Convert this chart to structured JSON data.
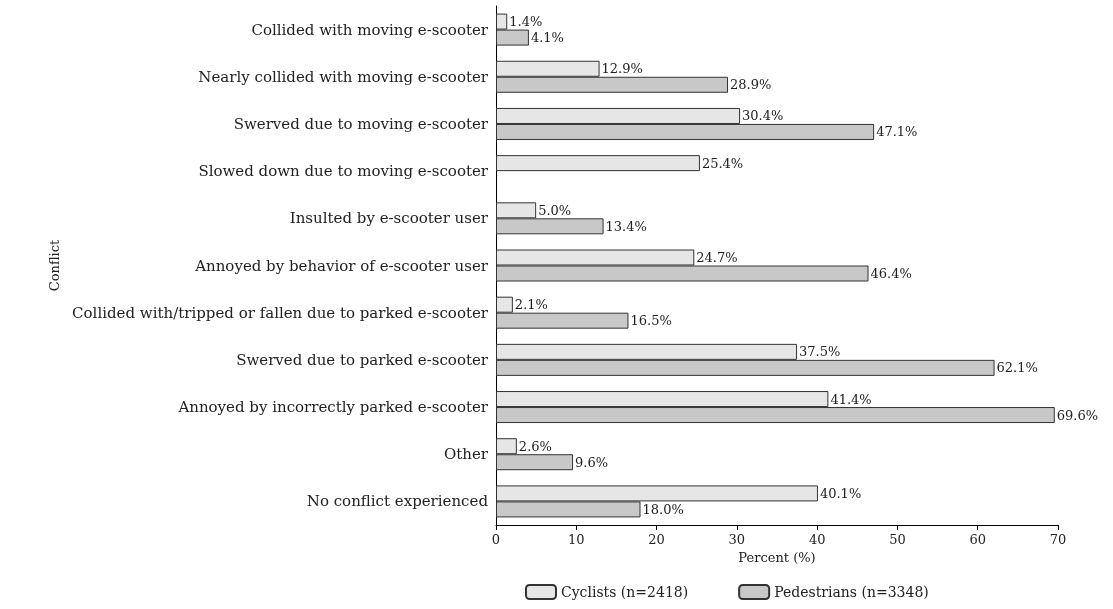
{
  "chart_data": {
    "type": "bar",
    "orientation": "horizontal",
    "xlabel": "Percent (%)",
    "ylabel": "Conflict",
    "categories": [
      "Collided with moving e-scooter",
      "Nearly collided with moving e-scooter",
      "Swerved due to moving e-scooter",
      "Slowed down due to moving e-scooter",
      "Insulted by e-scooter user",
      "Annoyed by behavior of e-scooter user",
      "Collided with/tripped or fallen due to parked e-scooter",
      "Swerved due to parked e-scooter",
      "Annoyed by incorrectly parked e-scooter",
      "Other",
      "No conflict experienced"
    ],
    "series": [
      {
        "name": "Cyclists (n=2418)",
        "color": "#e6e6e6",
        "values": [
          1.4,
          12.9,
          30.4,
          25.4,
          5.0,
          24.7,
          2.1,
          37.5,
          41.4,
          2.6,
          40.1
        ],
        "value_labels": [
          "1.4%",
          "12.9%",
          "30.4%",
          "25.4%",
          "5.0%",
          "24.7%",
          "2.1%",
          "37.5%",
          "41.4%",
          "2.6%",
          "40.1%"
        ]
      },
      {
        "name": "Pedestrians (n=3348)",
        "color": "#c8c8c8",
        "values": [
          4.1,
          28.9,
          47.1,
          null,
          13.4,
          46.4,
          16.5,
          62.1,
          69.6,
          9.6,
          18.0
        ],
        "value_labels": [
          "4.1%",
          "28.9%",
          "47.1%",
          null,
          "13.4%",
          "46.4%",
          "16.5%",
          "62.1%",
          "69.6%",
          "9.6%",
          "18.0%"
        ]
      }
    ],
    "xlim": [
      0,
      70
    ],
    "xticks": [
      0,
      10,
      20,
      30,
      40,
      50,
      60,
      70
    ],
    "grid": false,
    "legend": "bottom"
  }
}
